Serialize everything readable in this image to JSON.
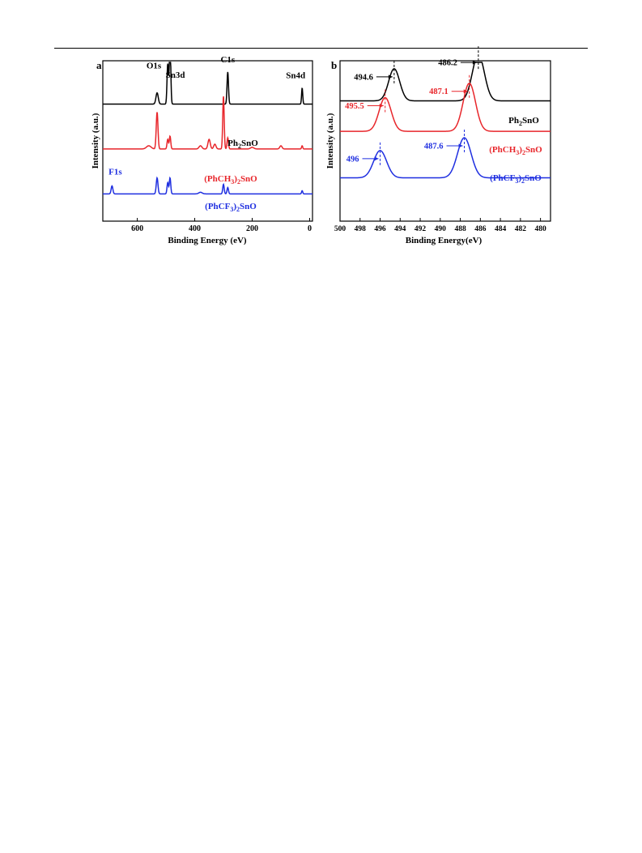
{
  "chart_data": [
    {
      "type": "line",
      "panel_label": "a",
      "xlabel": "Binding Energy (eV)",
      "ylabel": "Intensity (a.u.)",
      "xlim": [
        720,
        -10
      ],
      "ylim": [
        0,
        1
      ],
      "x_reversed": true,
      "xticks": [
        600,
        400,
        200,
        0
      ],
      "series": [
        {
          "name": "Ph2SnO",
          "label_main": "Ph",
          "label_sub": "2",
          "label_tail": "SnO",
          "color": "#000000",
          "baseline": 0.73,
          "peaks": [
            [
              531,
              0.07,
              4
            ],
            [
              494,
              0.25,
              2.5
            ],
            [
              486,
              0.42,
              2.5
            ],
            [
              285,
              0.2,
              2.5
            ],
            [
              26,
              0.1,
              2
            ]
          ]
        },
        {
          "name": "(PhCH3)2SnO",
          "label_main": "(PhCH",
          "label_sub": "3",
          "label_mid": ")",
          "label_sub2": "2",
          "label_tail": "SnO",
          "color": "#e8262b",
          "baseline": 0.45,
          "peaks": [
            [
              560,
              0.02,
              8
            ],
            [
              531,
              0.23,
              3
            ],
            [
              494,
              0.06,
              2.5
            ],
            [
              486,
              0.08,
              2.5
            ],
            [
              380,
              0.02,
              5
            ],
            [
              350,
              0.06,
              4
            ],
            [
              330,
              0.03,
              4
            ],
            [
              300,
              0.33,
              2.5
            ],
            [
              285,
              0.07,
              2.5
            ],
            [
              200,
              0.01,
              6
            ],
            [
              100,
              0.02,
              4
            ],
            [
              26,
              0.02,
              2
            ]
          ]
        },
        {
          "name": "(PhCF3)2SnO",
          "label_main": "(PhCF",
          "label_sub": "3",
          "label_mid": ")",
          "label_sub2": "2",
          "label_tail": "SnO",
          "color": "#1f2fe0",
          "baseline": 0.17,
          "peaks": [
            [
              688,
              0.05,
              3
            ],
            [
              531,
              0.1,
              3
            ],
            [
              494,
              0.07,
              2.5
            ],
            [
              486,
              0.1,
              2.5
            ],
            [
              380,
              0.01,
              6
            ],
            [
              300,
              0.06,
              2.5
            ],
            [
              285,
              0.04,
              2.5
            ],
            [
              26,
              0.02,
              2
            ]
          ]
        }
      ],
      "annotations": [
        {
          "text": "O1s",
          "x": 531,
          "color": "#000000"
        },
        {
          "text": "Sn3d",
          "x": 490,
          "color": "#000000"
        },
        {
          "text": "C1s",
          "x": 285,
          "color": "#000000"
        },
        {
          "text": "Sn4d",
          "x": 26,
          "color": "#000000"
        },
        {
          "text": "F1s",
          "x": 688,
          "color": "#1f2fe0"
        }
      ]
    },
    {
      "type": "line",
      "panel_label": "b",
      "xlabel": "Binding Energy(eV)",
      "ylabel": "Intensity (a.u.)",
      "xlim": [
        500,
        479
      ],
      "ylim": [
        0,
        1
      ],
      "x_reversed": true,
      "xticks": [
        500,
        498,
        496,
        494,
        492,
        490,
        488,
        486,
        484,
        482,
        480
      ],
      "series": [
        {
          "name": "Ph2SnO",
          "label_main": "Ph",
          "label_sub": "2",
          "label_tail": "SnO",
          "color": "#000000",
          "baseline": 0.75,
          "peaks": [
            [
              494.6,
              0.2,
              0.55
            ],
            [
              486.2,
              0.29,
              0.6
            ]
          ]
        },
        {
          "name": "(PhCH3)2SnO",
          "label_main": "(PhCH",
          "label_sub": "3",
          "label_mid": ")",
          "label_sub2": "2",
          "label_tail": "SnO",
          "color": "#e8262b",
          "baseline": 0.56,
          "peaks": [
            [
              495.5,
              0.21,
              0.6
            ],
            [
              487.1,
              0.3,
              0.62
            ]
          ]
        },
        {
          "name": "(PhCF3)2SnO",
          "label_main": "(PhCF",
          "label_sub": "3",
          "label_mid": ")",
          "label_sub2": "2",
          "label_tail": "SnO",
          "color": "#1f2fe0",
          "baseline": 0.27,
          "peaks": [
            [
              496,
              0.17,
              0.65
            ],
            [
              487.6,
              0.25,
              0.68
            ]
          ]
        }
      ],
      "annotations": [
        {
          "text": "494.6",
          "x": 494.6,
          "series": 0,
          "color": "#000000"
        },
        {
          "text": "486.2",
          "x": 486.2,
          "series": 0,
          "color": "#000000"
        },
        {
          "text": "495.5",
          "x": 495.5,
          "series": 1,
          "color": "#e8262b"
        },
        {
          "text": "487.1",
          "x": 487.1,
          "series": 1,
          "color": "#e8262b"
        },
        {
          "text": "496",
          "x": 496,
          "series": 2,
          "color": "#1f2fe0"
        },
        {
          "text": "487.6",
          "x": 487.6,
          "series": 2,
          "color": "#1f2fe0"
        }
      ]
    }
  ]
}
